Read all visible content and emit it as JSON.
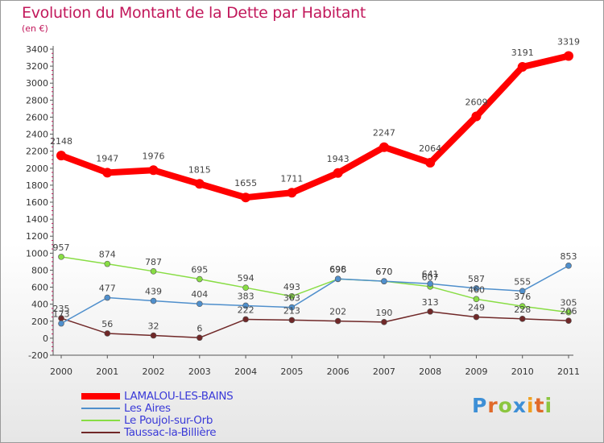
{
  "chart_data": {
    "type": "line",
    "title": "Evolution du Montant de la Dette par Habitant",
    "subtitle": "(en €)",
    "x": [
      "2000",
      "2001",
      "2002",
      "2003",
      "2004",
      "2005",
      "2006",
      "2007",
      "2008",
      "2009",
      "2010",
      "2011"
    ],
    "ylim": [
      -200,
      3400
    ],
    "yticks": [
      -200,
      0,
      200,
      400,
      600,
      800,
      1000,
      1200,
      1400,
      1600,
      1800,
      2000,
      2200,
      2400,
      2600,
      2800,
      3000,
      3200,
      3400
    ],
    "grid": false,
    "legend_position": "bottom-left",
    "series": [
      {
        "name": "LAMALOU-LES-BAINS",
        "color": "#ff0000",
        "values": [
          2148,
          1947,
          1976,
          1815,
          1655,
          1711,
          1943,
          2247,
          2064,
          2609,
          3191,
          3319
        ]
      },
      {
        "name": "Les Aires",
        "color": "#4f8fcc",
        "values": [
          173,
          477,
          439,
          404,
          383,
          363,
          698,
          670,
          641,
          587,
          555,
          853
        ]
      },
      {
        "name": "Le Poujol-sur-Orb",
        "color": "#88dd44",
        "values": [
          957,
          874,
          787,
          695,
          594,
          493,
          696,
          670,
          607,
          460,
          376,
          305
        ]
      },
      {
        "name": "Taussac-la-Billière",
        "color": "#702828",
        "values": [
          235,
          56,
          32,
          6,
          222,
          213,
          202,
          190,
          313,
          249,
          228,
          206
        ]
      }
    ]
  },
  "legend": [
    {
      "label": "LAMALOU-LES-BAINS",
      "color": "#ff0000"
    },
    {
      "label": "Les Aires",
      "color": "#4f8fcc"
    },
    {
      "label": "Le Poujol-sur-Orb",
      "color": "#88dd44"
    },
    {
      "label": "Taussac-la-Billière",
      "color": "#702828"
    }
  ],
  "logo": {
    "text": "Proxiti"
  }
}
